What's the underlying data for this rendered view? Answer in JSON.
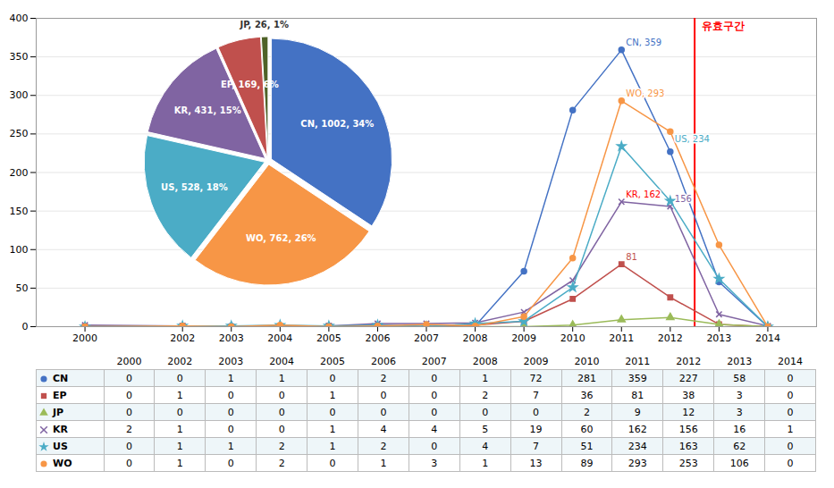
{
  "chart_data": [
    {
      "type": "line",
      "x": [
        2000,
        2002,
        2003,
        2004,
        2005,
        2006,
        2007,
        2008,
        2009,
        2010,
        2011,
        2012,
        2013,
        2014
      ],
      "xlim": [
        1999,
        2015
      ],
      "xticks": [
        2000,
        2002,
        2003,
        2004,
        2005,
        2006,
        2007,
        2008,
        2009,
        2010,
        2011,
        2012,
        2013,
        2014
      ],
      "ylim": [
        0,
        400
      ],
      "yticks": [
        0,
        50,
        100,
        150,
        200,
        250,
        300,
        350,
        400
      ],
      "grid": true,
      "series": [
        {
          "name": "CN",
          "color": "#4472C4",
          "marker": "circle",
          "values": [
            0,
            0,
            1,
            1,
            0,
            2,
            0,
            1,
            72,
            281,
            359,
            227,
            58,
            0
          ]
        },
        {
          "name": "EP",
          "color": "#C0504D",
          "marker": "square",
          "values": [
            0,
            1,
            0,
            0,
            1,
            0,
            0,
            2,
            7,
            36,
            81,
            38,
            3,
            0
          ]
        },
        {
          "name": "JP",
          "color": "#9BBB59",
          "marker": "triangle",
          "values": [
            0,
            0,
            0,
            0,
            0,
            0,
            0,
            0,
            0,
            2,
            9,
            12,
            3,
            0
          ]
        },
        {
          "name": "KR",
          "color": "#8064A2",
          "marker": "x",
          "values": [
            2,
            1,
            0,
            0,
            1,
            4,
            4,
            5,
            19,
            60,
            162,
            156,
            16,
            1
          ]
        },
        {
          "name": "US",
          "color": "#4BACC6",
          "marker": "star",
          "values": [
            0,
            1,
            1,
            2,
            1,
            2,
            0,
            4,
            7,
            51,
            234,
            163,
            62,
            0
          ]
        },
        {
          "name": "WO",
          "color": "#F79646",
          "marker": "circle",
          "values": [
            0,
            1,
            0,
            2,
            0,
            1,
            3,
            1,
            13,
            89,
            293,
            253,
            106,
            0
          ]
        }
      ],
      "annotations": [
        {
          "text": "CN, 359",
          "x": 2011,
          "y": 359,
          "color": "#4472C4"
        },
        {
          "text": "WO, 293",
          "x": 2011,
          "y": 293,
          "color": "#F79646"
        },
        {
          "text": "US, 234",
          "x": 2012,
          "y": 234,
          "color": "#4BACC6"
        },
        {
          "text": "KR, 162",
          "x": 2011,
          "y": 162,
          "color": "red"
        },
        {
          "text": "156",
          "x": 2012,
          "y": 156,
          "color": "#8064A2"
        },
        {
          "text": "81",
          "x": 2011,
          "y": 81,
          "color": "#C0504D"
        }
      ],
      "vline": {
        "x": 2012.5,
        "label": "유효구간",
        "color": "red"
      }
    },
    {
      "type": "pie",
      "categories": [
        "CN",
        "WO",
        "US",
        "KR",
        "EP",
        "JP"
      ],
      "values": [
        1002,
        762,
        528,
        431,
        169,
        26
      ],
      "value_labels": [
        "CN, 1002, 34%",
        "WO, 762, 26%",
        "US, 528, 18%",
        "KR, 431, 15%",
        "EP, 169, 6%",
        "JP, 26, 1%"
      ],
      "colors": [
        "#4472C4",
        "#F79646",
        "#4BACC6",
        "#8064A2",
        "#C0504D",
        "#4F6228"
      ]
    }
  ]
}
